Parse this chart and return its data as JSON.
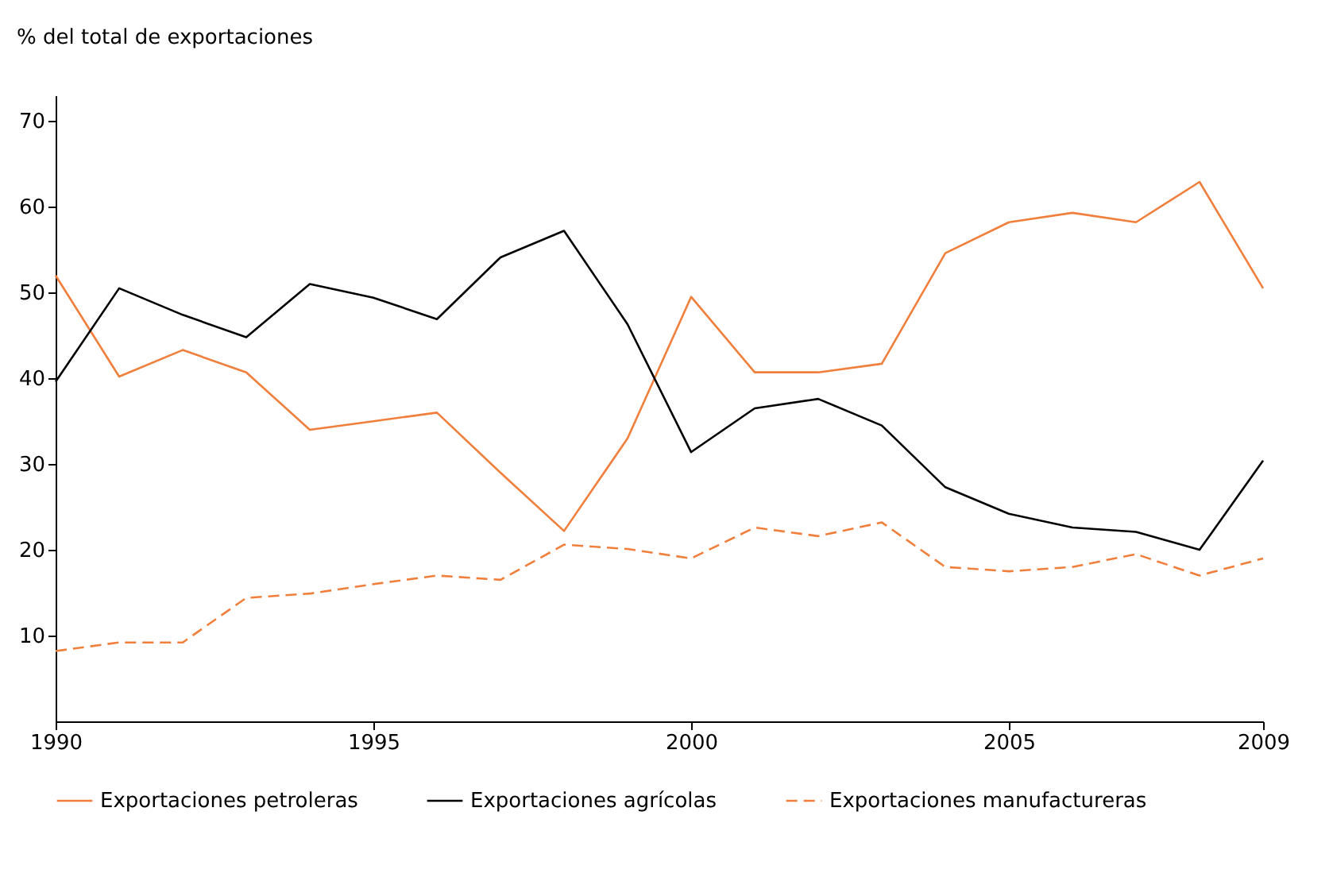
{
  "chart_data": {
    "type": "line",
    "ylabel": "% del total de exportaciones",
    "x": [
      1990,
      1991,
      1992,
      1993,
      1994,
      1995,
      1996,
      1997,
      1998,
      1999,
      2000,
      2001,
      2002,
      2003,
      2004,
      2005,
      2006,
      2007,
      2008,
      2009
    ],
    "series": [
      {
        "name": "Exportaciones petroleras",
        "color": "#f07f3c",
        "line_style": "solid",
        "values": [
          52,
          40.2,
          43.3,
          40.7,
          34,
          35,
          36,
          29,
          22.2,
          33,
          49.5,
          40.7,
          40.7,
          41.7,
          54.6,
          58.2,
          59.3,
          58.2,
          62.9,
          50.5
        ]
      },
      {
        "name": "Exportaciones agrícolas",
        "color": "#000000",
        "line_style": "solid",
        "values": [
          39.6,
          50.5,
          47.4,
          44.8,
          51,
          49.4,
          46.9,
          54.1,
          57.2,
          46.3,
          31.4,
          36.5,
          37.6,
          34.5,
          27.3,
          24.2,
          22.6,
          22.1,
          20,
          30.4
        ]
      },
      {
        "name": "Exportaciones manufactureras",
        "color": "#f07f3c",
        "line_style": "dashed",
        "values": [
          8.2,
          9.2,
          9.2,
          14.4,
          14.9,
          16,
          17,
          16.5,
          20.6,
          20.1,
          19,
          22.6,
          21.6,
          23.2,
          18,
          17.5,
          18,
          19.5,
          17,
          19
        ]
      }
    ],
    "xlim": [
      1990,
      2009
    ],
    "xticks": [
      1990,
      1995,
      2000,
      2005,
      2009
    ],
    "ylim": [
      0,
      73
    ],
    "yticks": [
      10,
      20,
      30,
      40,
      50,
      60,
      70
    ],
    "grid": false,
    "legend": "bottom",
    "marker": "none"
  }
}
